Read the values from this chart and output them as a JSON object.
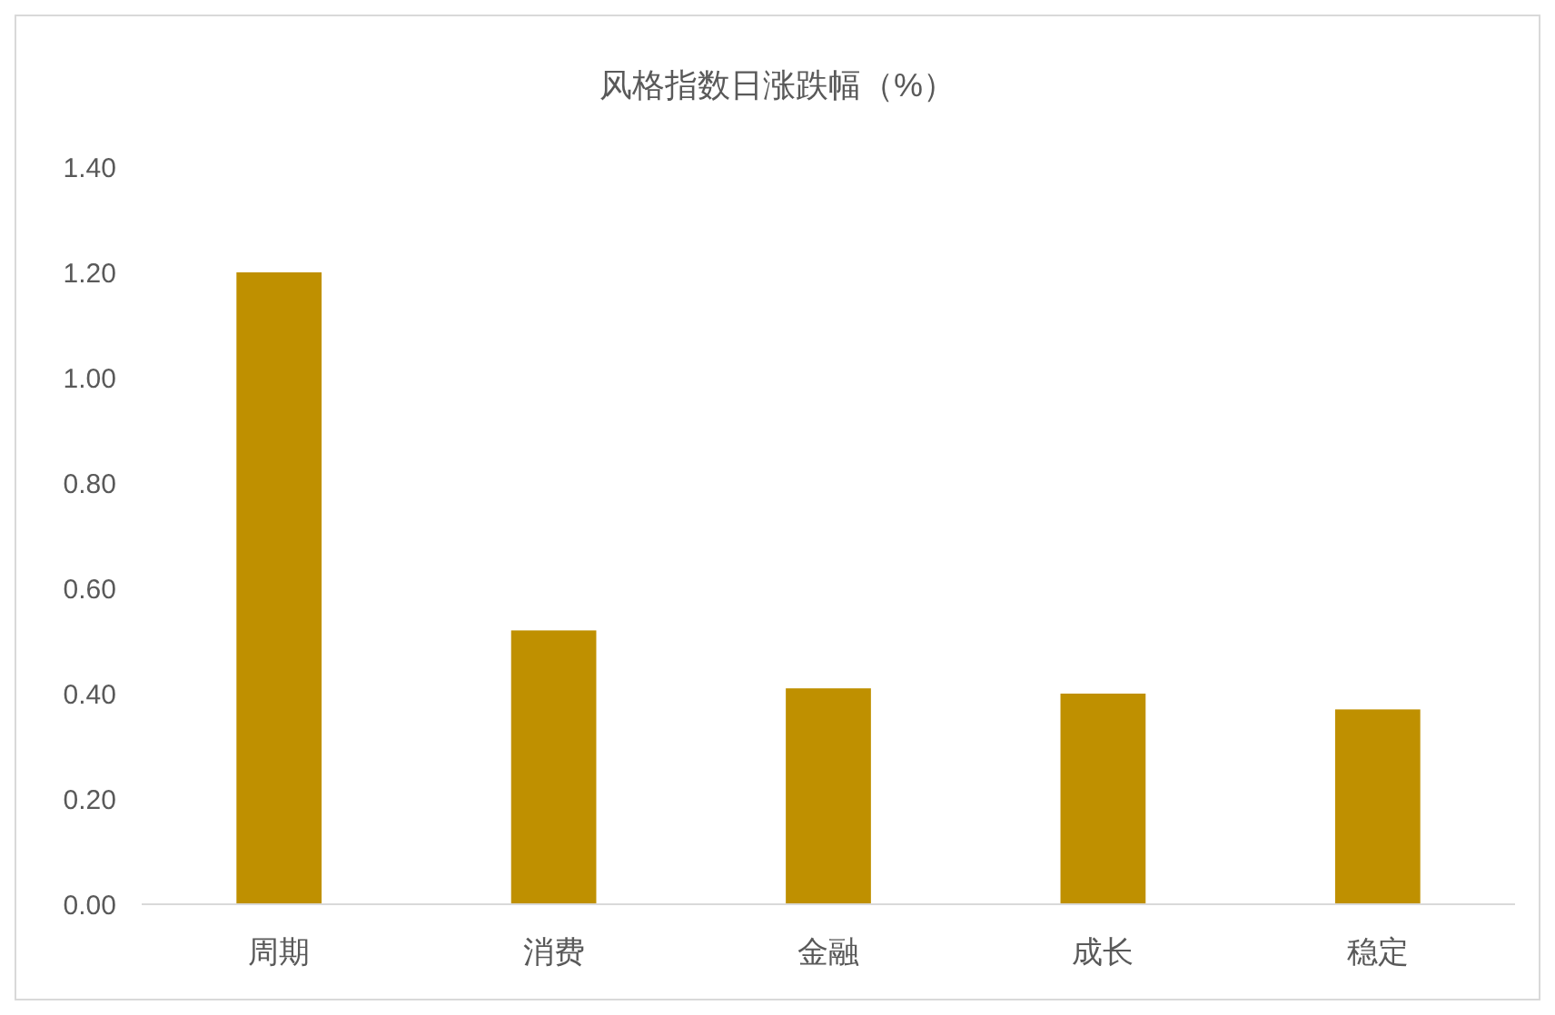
{
  "chart_data": {
    "type": "bar",
    "title": "风格指数日涨跌幅（%）",
    "categories": [
      "周期",
      "消费",
      "金融",
      "成长",
      "稳定"
    ],
    "values": [
      1.2,
      0.52,
      0.41,
      0.4,
      0.37
    ],
    "color": "#bf9000",
    "ylim": [
      0,
      1.4
    ],
    "yticks": [
      {
        "value": 0,
        "label": "0.00"
      },
      {
        "value": 0.2,
        "label": "0.20"
      },
      {
        "value": 0.4,
        "label": "0.40"
      },
      {
        "value": 0.6,
        "label": "0.60"
      },
      {
        "value": 0.8,
        "label": "0.80"
      },
      {
        "value": 1.0,
        "label": "1.00"
      },
      {
        "value": 1.2,
        "label": "1.20"
      },
      {
        "value": 1.4,
        "label": "1.40"
      }
    ],
    "grid": false
  }
}
